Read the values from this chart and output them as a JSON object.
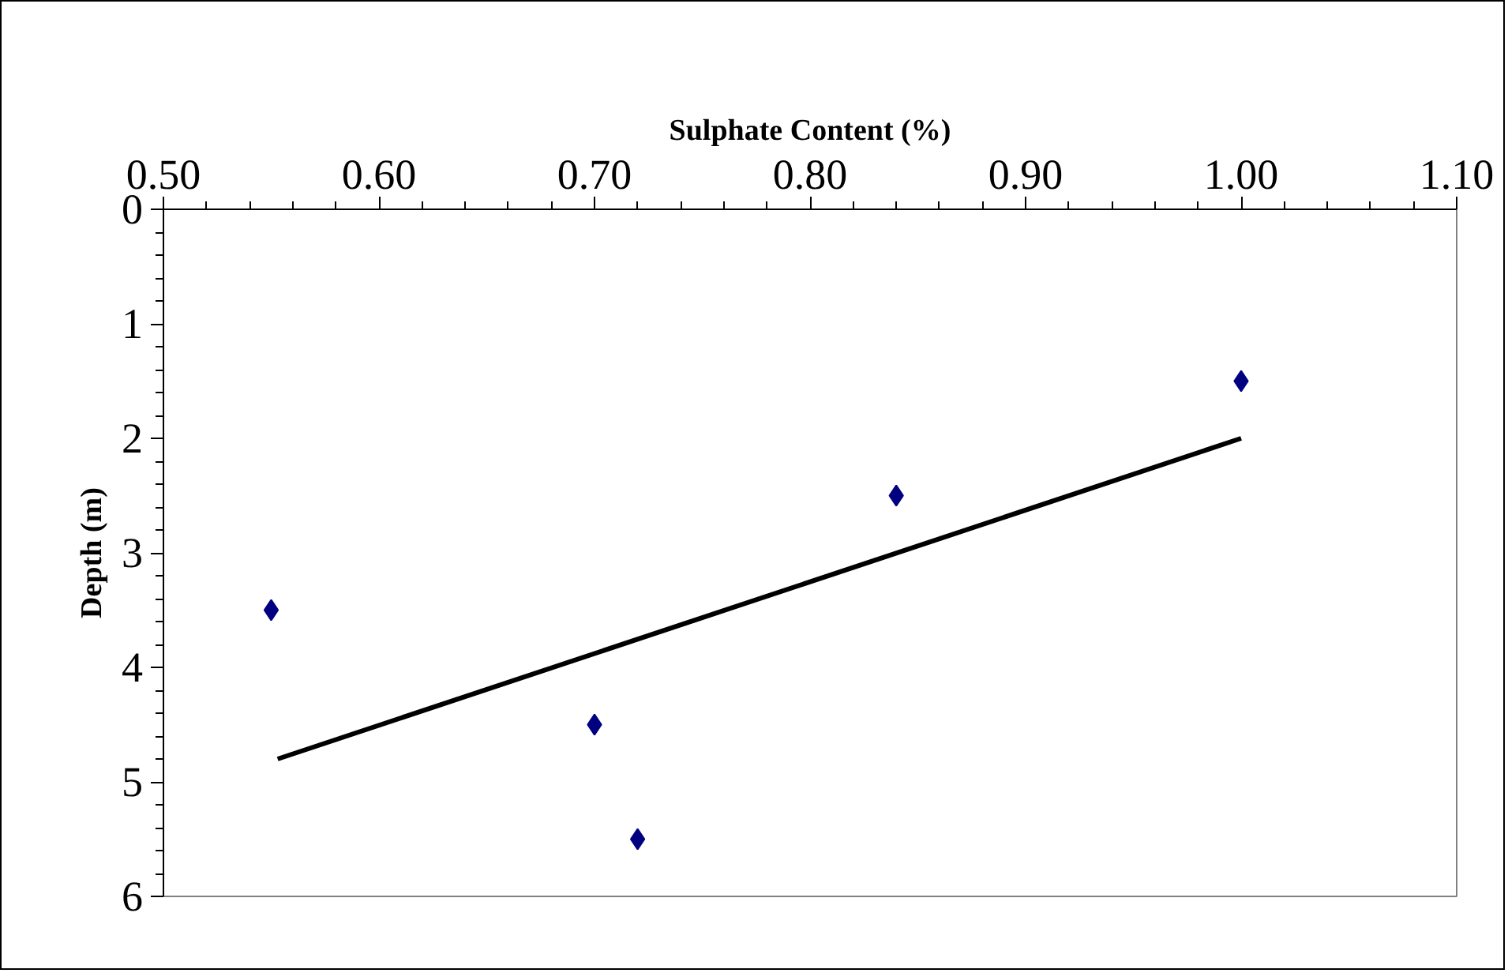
{
  "chart_data": {
    "type": "scatter",
    "xlabel": "Sulphate Content (%)",
    "ylabel": "Depth (m)",
    "xlim": [
      0.5,
      1.1
    ],
    "xticks": [
      {
        "value": 0.5,
        "label": "0.50"
      },
      {
        "value": 0.6,
        "label": "0.60"
      },
      {
        "value": 0.7,
        "label": "0.70"
      },
      {
        "value": 0.8,
        "label": "0.80"
      },
      {
        "value": 0.9,
        "label": "0.90"
      },
      {
        "value": 1.0,
        "label": "1.00"
      },
      {
        "value": 1.1,
        "label": "1.10"
      }
    ],
    "ylim": [
      6,
      0
    ],
    "yticks": [
      0,
      1,
      2,
      3,
      4,
      5,
      6
    ],
    "marker": "diamond",
    "grid": false,
    "x": [
      0.55,
      0.7,
      0.72,
      0.84,
      1.0
    ],
    "series": [
      {
        "color": "#000080",
        "values": [
          3.5,
          4.5,
          5.5,
          2.5,
          1.5
        ]
      },
      {
        "type": "line",
        "color": "#000000",
        "x": [
          0.553,
          1.0
        ],
        "values": [
          4.8,
          2.0
        ],
        "marker": "none"
      }
    ]
  }
}
